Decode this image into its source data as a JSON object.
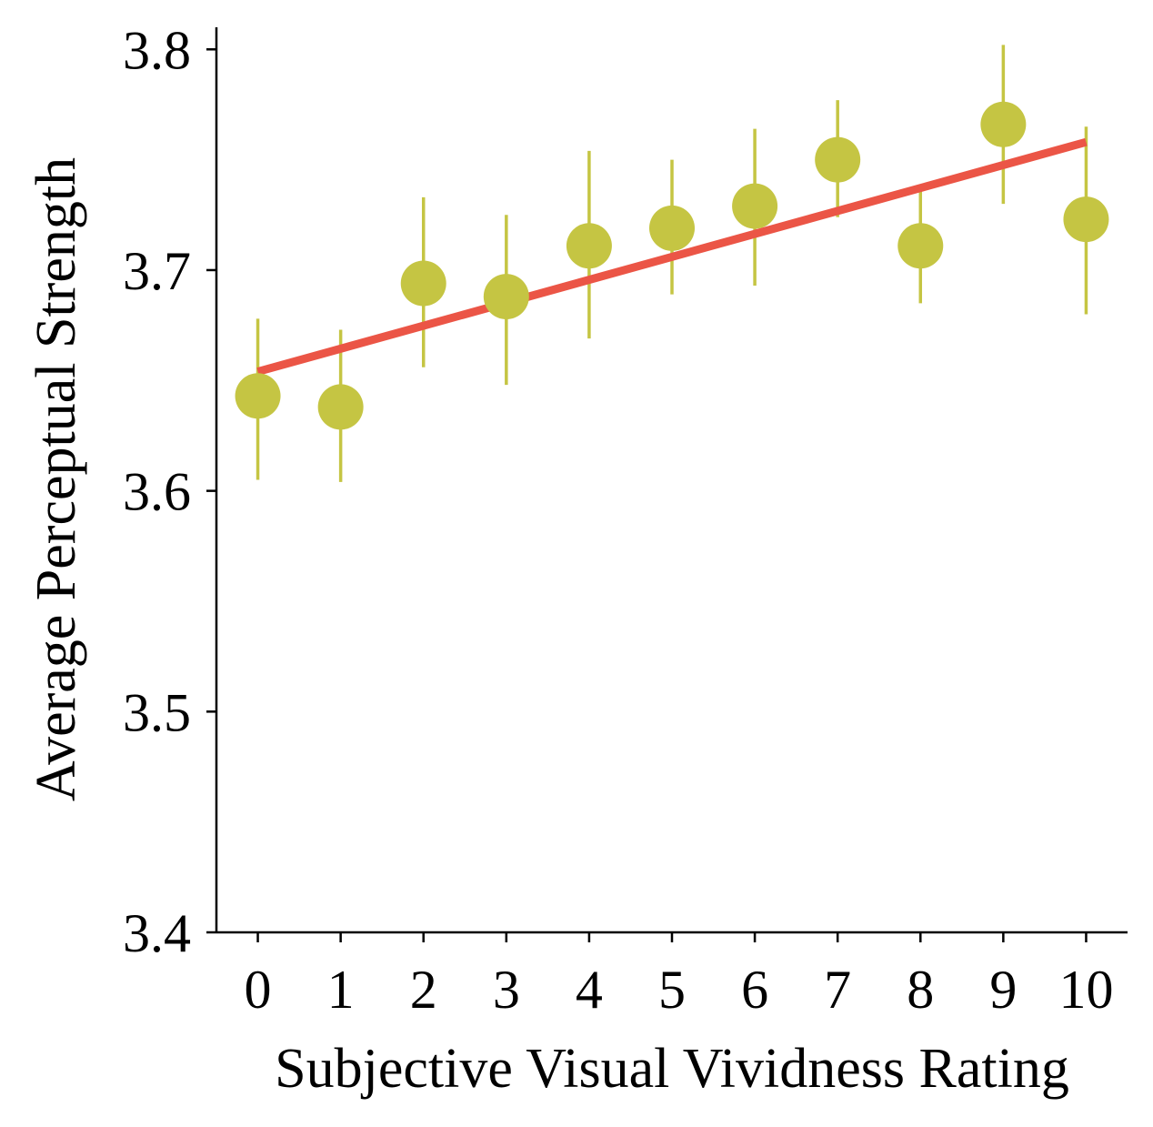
{
  "chart_data": {
    "type": "scatter",
    "xlabel": "Subjective Visual Vividness Rating",
    "ylabel": "Average Perceptual Strength",
    "xlim": [
      -0.5,
      10.5
    ],
    "ylim": [
      3.4,
      3.81
    ],
    "x_ticks": [
      "0",
      "1",
      "2",
      "3",
      "4",
      "5",
      "6",
      "7",
      "8",
      "9",
      "10"
    ],
    "y_ticks": [
      "3.4",
      "3.5",
      "3.6",
      "3.7",
      "3.8"
    ],
    "grid": false,
    "legend": "none",
    "colors": {
      "points": "#c5c543",
      "fit_line": "#eb5546",
      "axis": "#000000"
    },
    "series": [
      {
        "type": "scatter",
        "x": [
          0,
          1,
          2,
          3,
          4,
          5,
          6,
          7,
          8,
          9,
          10
        ],
        "y": [
          3.643,
          3.638,
          3.694,
          3.688,
          3.711,
          3.719,
          3.729,
          3.75,
          3.711,
          3.766,
          3.723
        ],
        "err_low": [
          3.605,
          3.604,
          3.656,
          3.648,
          3.669,
          3.689,
          3.693,
          3.724,
          3.685,
          3.73,
          3.68
        ],
        "err_high": [
          3.678,
          3.673,
          3.733,
          3.725,
          3.754,
          3.75,
          3.764,
          3.777,
          3.738,
          3.802,
          3.765
        ]
      },
      {
        "type": "line",
        "x": [
          0,
          10
        ],
        "y": [
          3.654,
          3.758
        ]
      }
    ]
  }
}
